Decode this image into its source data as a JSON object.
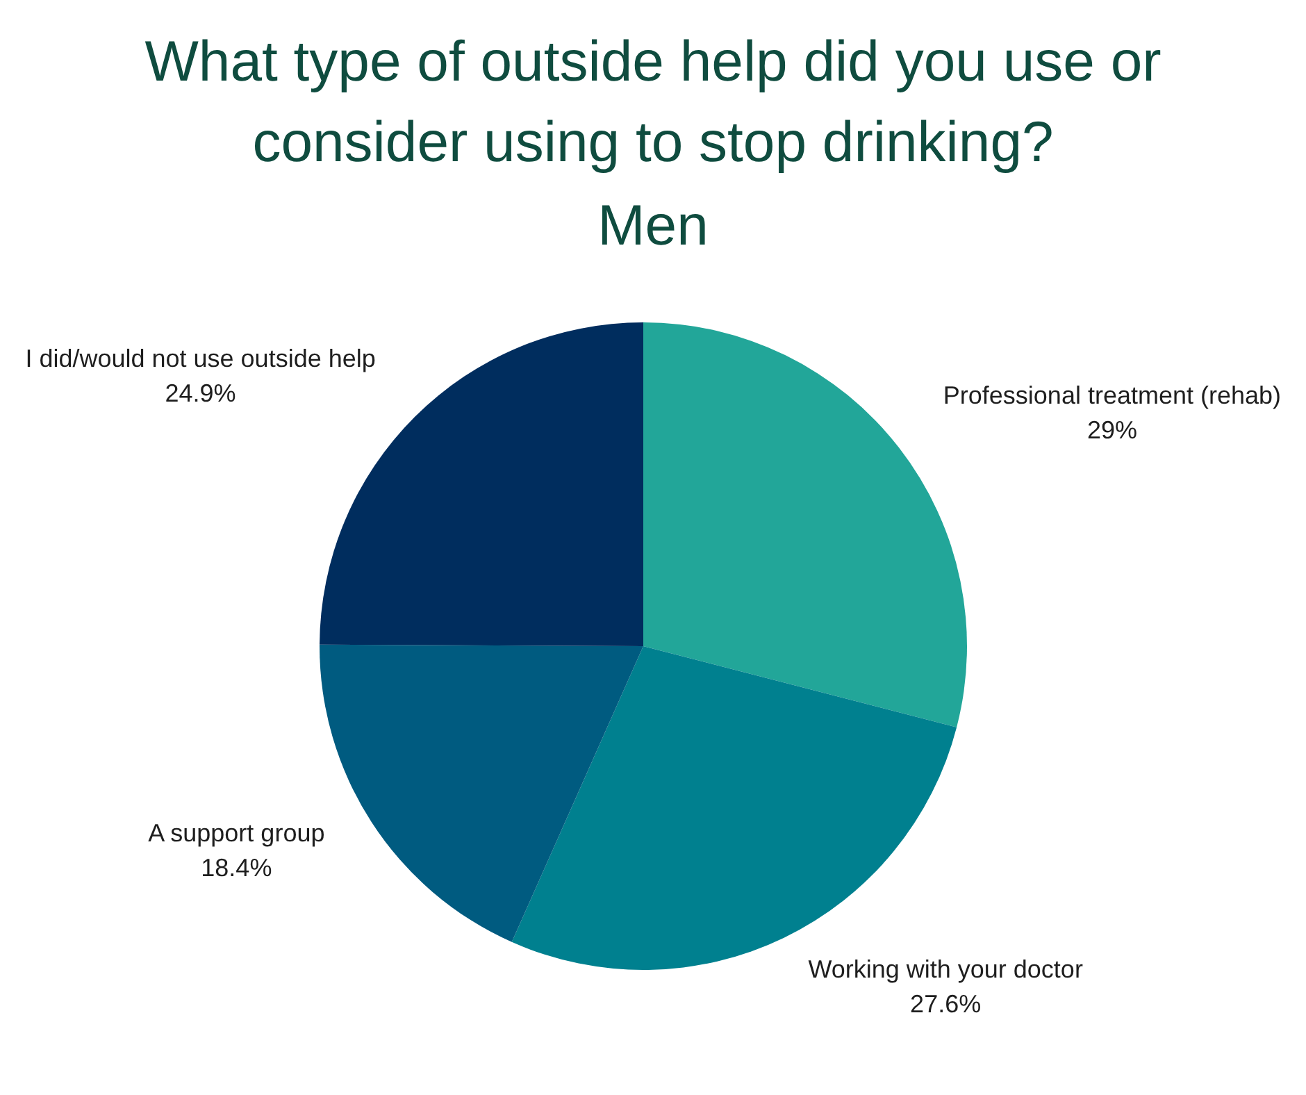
{
  "chart_data": {
    "type": "pie",
    "title": "What type of outside help did you use or consider using to stop drinking?",
    "subtitle": "Men",
    "categories": [
      "Professional treatment (rehab)",
      "Working with your doctor",
      "A support group",
      "I did/would not use outside help"
    ],
    "values": [
      29,
      27.6,
      18.4,
      24.9
    ],
    "colors": [
      "#22a699",
      "#00808f",
      "#005b80",
      "#002d5e"
    ],
    "value_labels": [
      "29%",
      "27.6%",
      "18.4%",
      "24.9%"
    ]
  }
}
